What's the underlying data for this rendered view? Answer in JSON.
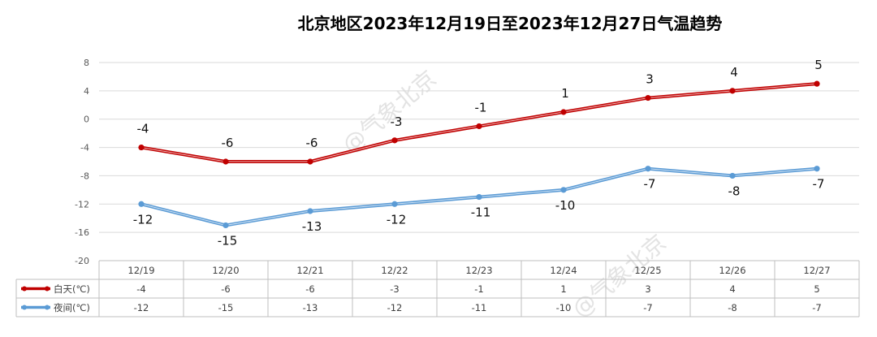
{
  "title": "北京地区2023年12月19日至2023年12月27日气温趋势",
  "watermark": "@气象北京",
  "chart_data": {
    "type": "line",
    "title": "北京地区2023年12月19日至2023年12月27日气温趋势",
    "categories": [
      "12/19",
      "12/20",
      "12/21",
      "12/22",
      "12/23",
      "12/24",
      "12/25",
      "12/26",
      "12/27"
    ],
    "ylim": [
      -20,
      8
    ],
    "yticks": [
      8,
      4,
      0,
      -4,
      -8,
      -12,
      -16,
      -20
    ],
    "grid": true,
    "legend": "data-table",
    "series": [
      {
        "name": "白天(℃)",
        "color": "#c00000",
        "values": [
          -4,
          -6,
          -6,
          -3,
          -1,
          1,
          3,
          4,
          5
        ]
      },
      {
        "name": "夜间(℃)",
        "color": "#5b9bd5",
        "values": [
          -12,
          -15,
          -13,
          -12,
          -11,
          -10,
          -7,
          -8,
          -7
        ]
      }
    ]
  }
}
